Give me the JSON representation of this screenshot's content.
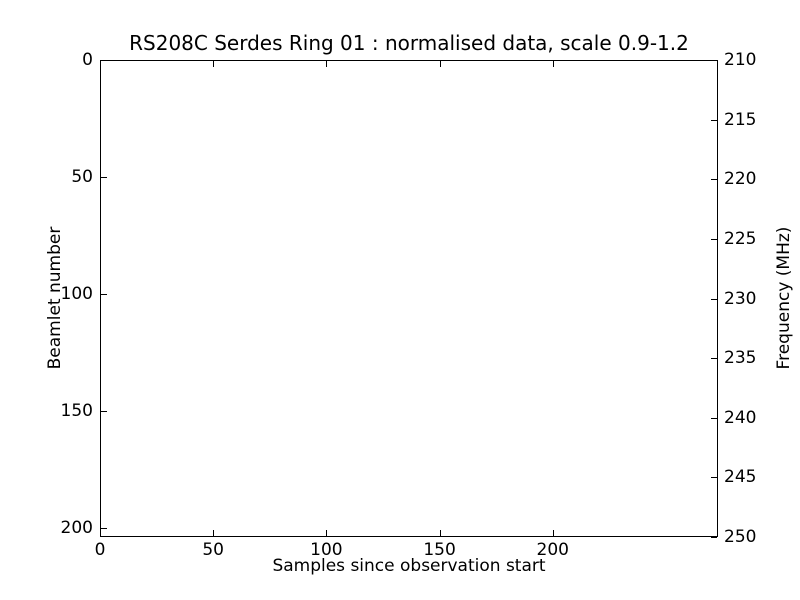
{
  "figure": {
    "background": "#ffffff",
    "line_color": "#000000",
    "text_color": "#000000"
  },
  "chart_data": {
    "type": "heatmap",
    "title": "RS208C Serdes Ring 01 : normalised data, scale 0.9-1.2",
    "xlabel": "Samples since observation start",
    "ylabel_left": "Beamlet number",
    "ylabel_right": "Frequency (MHz)",
    "scale": [
      0.9,
      1.2
    ],
    "grid": false,
    "legend": null,
    "plot_area_content": "empty (no data pixels rendered, blank white)",
    "x_axis": {
      "ticks": [
        0,
        50,
        100,
        150,
        200
      ],
      "range": [
        0,
        273
      ],
      "tick_side": "inward, top and bottom spines"
    },
    "y_axis_left": {
      "ticks": [
        0,
        50,
        100,
        150,
        200
      ],
      "range": [
        0,
        204
      ],
      "direction": "increasing downward"
    },
    "y_axis_right": {
      "ticks": [
        210,
        215,
        220,
        225,
        230,
        235,
        240,
        245,
        250
      ],
      "range": [
        210,
        250
      ],
      "direction": "increasing downward"
    },
    "series": []
  }
}
